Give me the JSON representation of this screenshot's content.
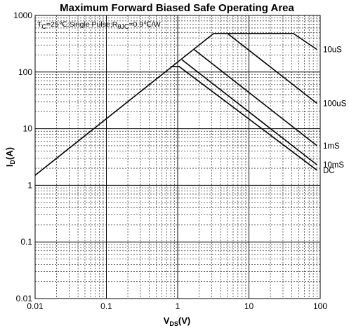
{
  "chart_data": {
    "type": "line",
    "title": "Maximum Forward Biased Safe Operating Area",
    "xlabel": {
      "main": "V",
      "sub": "DS",
      "unit": "(V)"
    },
    "ylabel": {
      "main": "I",
      "sub": "D",
      "unit": "(A)"
    },
    "x_scale": "log",
    "y_scale": "log",
    "xlim": [
      0.01,
      100
    ],
    "ylim": [
      0.01,
      1000
    ],
    "grid": true,
    "x_ticks": [
      "0.01",
      "0.1",
      "1",
      "10",
      "100"
    ],
    "y_ticks": [
      "0.01",
      "0.1",
      "1",
      "10",
      "100",
      "1000"
    ],
    "condition": {
      "t_main": "T",
      "t_sub": "C",
      "t_rest": "=25℃;Single Pulse;R",
      "r_sub": "θJC",
      "r_rest": "=0.9℃/W"
    },
    "series": [
      {
        "name": "10uS",
        "points": [
          [
            0.01,
            1.5
          ],
          [
            3.2,
            480
          ],
          [
            42,
            480
          ],
          [
            90,
            250
          ]
        ]
      },
      {
        "name": "100uS",
        "points": [
          [
            5.0,
            480
          ],
          [
            90,
            28
          ]
        ]
      },
      {
        "name": "1mS",
        "points": [
          [
            1.7,
            250
          ],
          [
            90,
            5.0
          ]
        ]
      },
      {
        "name": "10mS",
        "points": [
          [
            1.15,
            165
          ],
          [
            90,
            2.3
          ]
        ]
      },
      {
        "name": "DC",
        "points": [
          [
            0.8,
            125
          ],
          [
            1.05,
            125
          ],
          [
            90,
            1.85
          ]
        ]
      }
    ]
  }
}
